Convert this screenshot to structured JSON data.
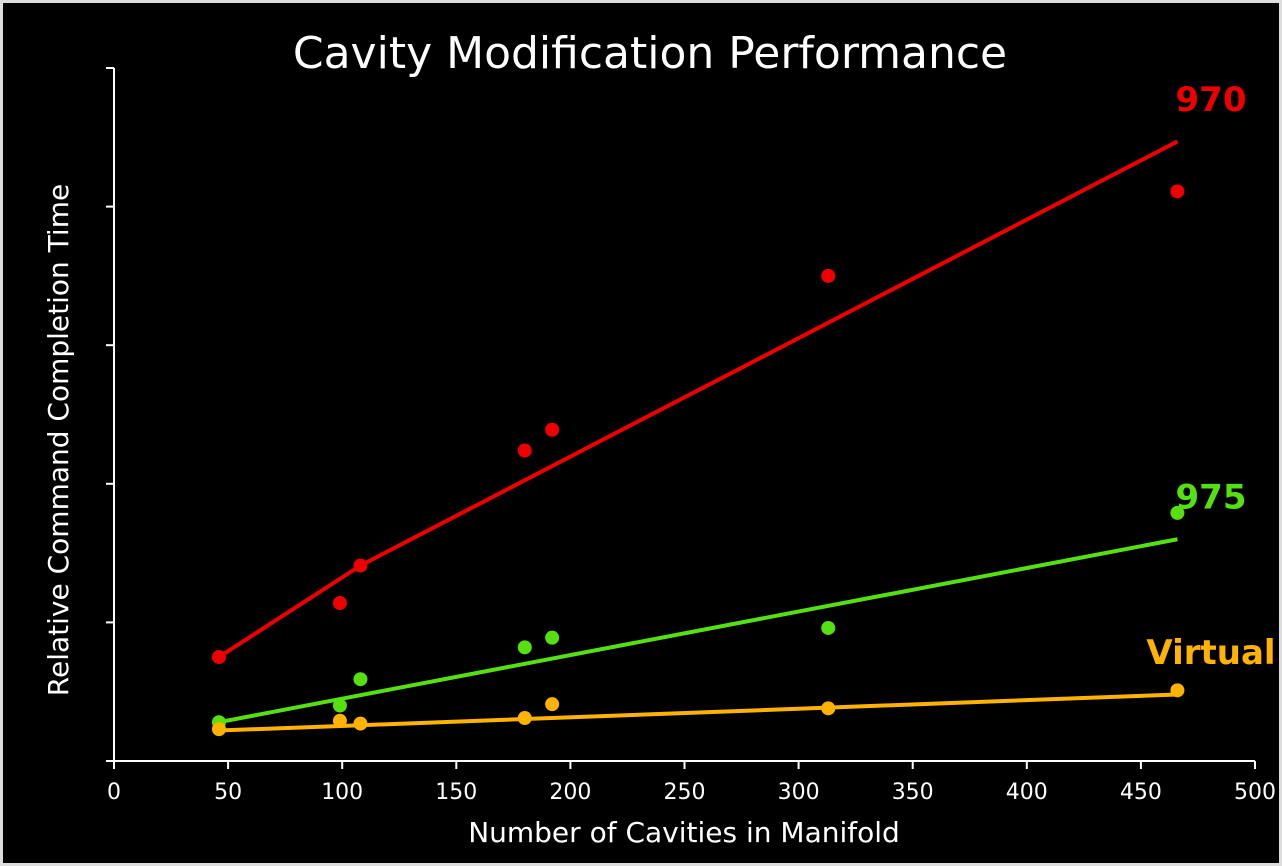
{
  "chart_data": {
    "type": "scatter",
    "title": "Cavity Modification Performance",
    "x_label": "Number of Cavities in Manifold",
    "y_label": "Relative Command Completion Time",
    "x": [
      46,
      99,
      108,
      180,
      192,
      313,
      466
    ],
    "trend_x": [
      46,
      108,
      466
    ],
    "series": [
      {
        "name": "970",
        "color": "#ee0000",
        "values": [
          0.75,
          1.14,
          1.41,
          2.24,
          2.39,
          3.5,
          4.11
        ],
        "trend": [
          0.75,
          1.41,
          4.47
        ]
      },
      {
        "name": "975",
        "color": "#55e011",
        "values": [
          0.28,
          0.4,
          0.59,
          0.82,
          0.89,
          0.96,
          1.79
        ],
        "trend": [
          0.28,
          0.475,
          1.6
        ]
      },
      {
        "name": "Virtual",
        "color": "#ffb300",
        "values": [
          0.23,
          0.29,
          0.27,
          0.31,
          0.41,
          0.38,
          0.51
        ],
        "trend": [
          0.22,
          0.258,
          0.48
        ]
      }
    ],
    "xlim": [
      0,
      500
    ],
    "xticks": [
      0,
      50,
      100,
      150,
      200,
      250,
      300,
      350,
      400,
      450,
      500
    ],
    "ylim": [
      0,
      5
    ],
    "yticks": [
      0,
      1,
      2,
      3,
      4,
      5
    ]
  }
}
